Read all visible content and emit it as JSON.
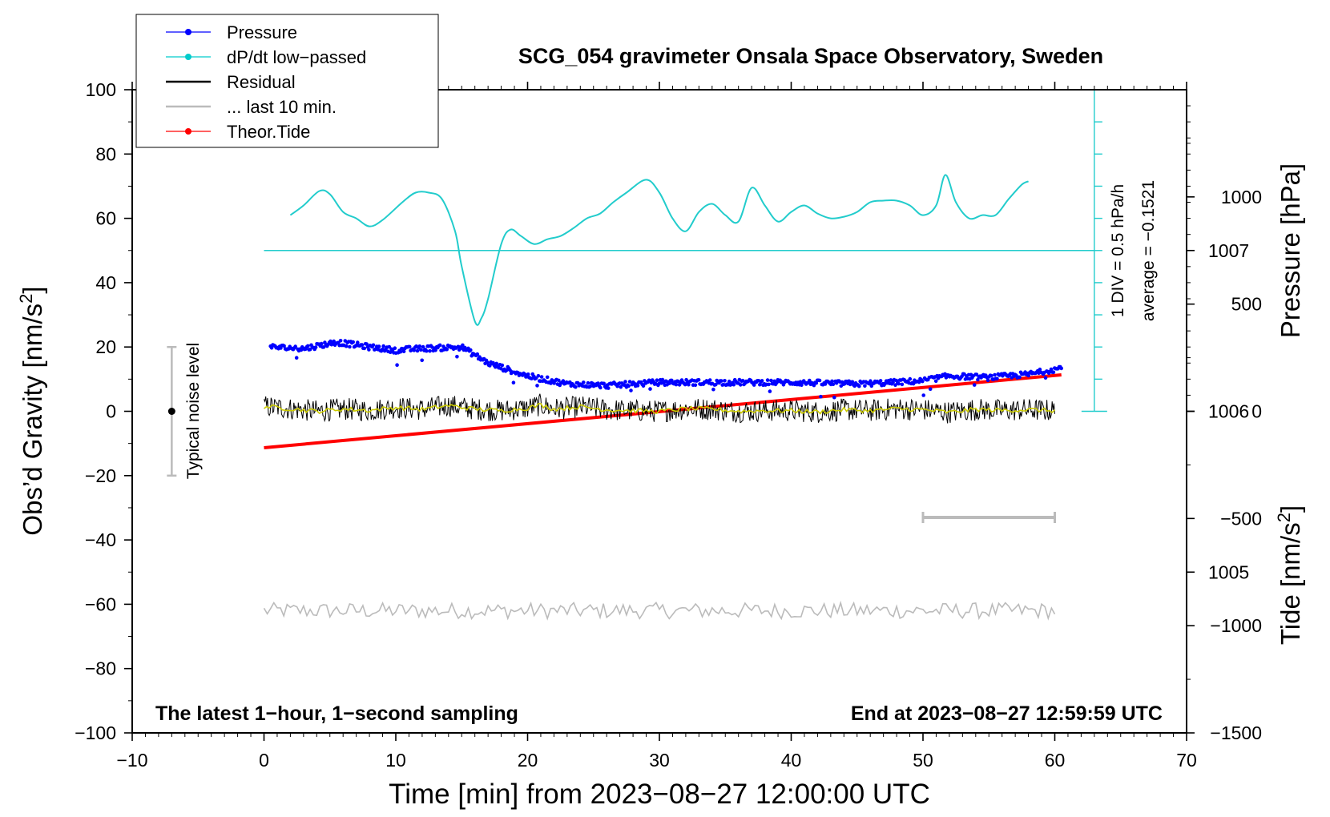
{
  "chart_data": {
    "type": "line",
    "title": "SCG_054 gravimeter Onsala Space Observatory, Sweden",
    "xlabel": "Time [min] from 2023−08−27 12:00:00 UTC",
    "ylabel_left_main": "Obs’d Gravity [nm/s",
    "ylabel_left_sup": "2",
    "ylabel_left_close": "]",
    "ylabel_right_pressure": "Pressure [hPa]",
    "ylabel_right_tide_main": "Tide [nm/s",
    "ylabel_right_tide_sup": "2",
    "ylabel_right_tide_close": "]",
    "xlim": [
      -10,
      70
    ],
    "ylim": [
      -100,
      100
    ],
    "pressure_lim": [
      1004.0,
      1008.0
    ],
    "tide_lim": [
      -1500,
      1500
    ],
    "x_ticks": [
      {
        "v": -10,
        "label": "−10"
      },
      {
        "v": 0,
        "label": "0"
      },
      {
        "v": 10,
        "label": "10"
      },
      {
        "v": 20,
        "label": "20"
      },
      {
        "v": 30,
        "label": "30"
      },
      {
        "v": 40,
        "label": "40"
      },
      {
        "v": 50,
        "label": "50"
      },
      {
        "v": 60,
        "label": "60"
      },
      {
        "v": 70,
        "label": "70"
      }
    ],
    "y_ticks": [
      {
        "v": 100,
        "label": "100"
      },
      {
        "v": 80,
        "label": "80"
      },
      {
        "v": 60,
        "label": "60"
      },
      {
        "v": 40,
        "label": "40"
      },
      {
        "v": 20,
        "label": "20"
      },
      {
        "v": 0,
        "label": "0"
      },
      {
        "v": -20,
        "label": "−20"
      },
      {
        "v": -40,
        "label": "−40"
      },
      {
        "v": -60,
        "label": "−60"
      },
      {
        "v": -80,
        "label": "−80"
      },
      {
        "v": -100,
        "label": "−100"
      }
    ],
    "pressure_ticks": [
      {
        "v": 1007,
        "label": "1007"
      },
      {
        "v": 1006,
        "label": "1006"
      },
      {
        "v": 1005,
        "label": "1005"
      }
    ],
    "tide_ticks": [
      {
        "v": 1000,
        "label": "1000"
      },
      {
        "v": 500,
        "label": "500"
      },
      {
        "v": 0,
        "label": "0"
      },
      {
        "v": -500,
        "label": "−500"
      },
      {
        "v": -1000,
        "label": "−1000"
      },
      {
        "v": -1500,
        "label": "−1500"
      }
    ],
    "legend": [
      {
        "name": "Pressure",
        "color": "#0000ff",
        "marker": true
      },
      {
        "name": "dP/dt low−passed",
        "color": "#00cccc",
        "marker": true
      },
      {
        "name": "Residual",
        "color": "#000000",
        "marker": false
      },
      {
        "name": "... last 10 min.",
        "color": "#bbbbbb",
        "marker": false
      },
      {
        "name": "Theor.Tide",
        "color": "#ff0000",
        "marker": true
      }
    ],
    "colors": {
      "pressure": "#0000ff",
      "dpdt": "#22cccc",
      "residual": "#000000",
      "residual_smooth": "#cccc00",
      "last10": "#bbbbbb",
      "tide": "#ff0000",
      "noise": "#bbbbbb"
    },
    "pressure_series": {
      "name": "Pressure",
      "unit": "hPa",
      "x": [
        0.5,
        3,
        5.5,
        8,
        10,
        12,
        15,
        17,
        20,
        23,
        26,
        28,
        30,
        35,
        40,
        45,
        48,
        50,
        52,
        55,
        58,
        60.5
      ],
      "y": [
        1006.4,
        1006.39,
        1006.43,
        1006.4,
        1006.38,
        1006.39,
        1006.4,
        1006.3,
        1006.22,
        1006.17,
        1006.16,
        1006.17,
        1006.18,
        1006.18,
        1006.18,
        1006.17,
        1006.18,
        1006.19,
        1006.22,
        1006.21,
        1006.23,
        1006.27
      ]
    },
    "dpdt_series": {
      "name": "dP/dt low−passed",
      "x": [
        2,
        3,
        4.2,
        5,
        6,
        7,
        8,
        9,
        10.5,
        11.5,
        12.5,
        13.5,
        14.5,
        15,
        16,
        16.5,
        17,
        18,
        18.7,
        19.5,
        20.5,
        21.5,
        22.5,
        23.5,
        24.5,
        25.5,
        26.5,
        27.5,
        29,
        30,
        31,
        32,
        33,
        34,
        35,
        36,
        37,
        38,
        39,
        40,
        41,
        42,
        43,
        44,
        45,
        46,
        47,
        48,
        49,
        50,
        51,
        51.7,
        52.5,
        53.5,
        54.5,
        55.5,
        56.5,
        57.5,
        58
      ],
      "y": [
        1.1,
        1.4,
        1.85,
        1.75,
        1.2,
        1.0,
        0.75,
        0.95,
        1.5,
        1.8,
        1.8,
        1.6,
        0.6,
        -0.5,
        -2.2,
        -2.1,
        -1.5,
        0.2,
        0.65,
        0.45,
        0.2,
        0.35,
        0.45,
        0.7,
        1.0,
        1.15,
        1.5,
        1.8,
        2.2,
        1.8,
        1.0,
        0.6,
        1.2,
        1.45,
        1.1,
        0.9,
        1.95,
        1.4,
        0.9,
        1.2,
        1.4,
        1.15,
        1.0,
        1.05,
        1.2,
        1.5,
        1.55,
        1.55,
        1.4,
        1.1,
        1.4,
        2.35,
        1.5,
        1.0,
        1.1,
        1.1,
        1.6,
        2.05,
        2.15
      ]
    },
    "dpdt_axis": {
      "label_div": "1 DIV = 0.5 hPa/h",
      "label_avg": "average = −0.1521",
      "zero_line_y": 50,
      "divisions": 10
    },
    "residual_series": {
      "name": "Residual",
      "x": [
        0,
        2,
        4,
        6,
        8,
        10,
        12,
        14,
        16,
        18,
        20,
        21,
        22,
        24,
        26,
        28,
        30,
        32,
        34,
        36,
        38,
        40,
        42,
        44,
        46,
        48,
        50,
        52,
        54,
        56,
        58,
        60
      ],
      "y": [
        1.5,
        0.8,
        0,
        0.7,
        0.3,
        1.2,
        0.6,
        1.8,
        0.7,
        0.2,
        1.0,
        2.0,
        0.7,
        1.4,
        0.5,
        0.2,
        0.0,
        0.8,
        0.7,
        0.0,
        0.2,
        0.2,
        -0.2,
        0.5,
        0.2,
        0.8,
        0.5,
        -0.3,
        0.6,
        0.3,
        0.5,
        0.2
      ],
      "noise_amp": 3.5
    },
    "last10_series": {
      "name": "... last 10 min.",
      "mean": -62,
      "amp": 2.5
    },
    "tide_series": {
      "name": "Theor.Tide",
      "unit": "nm/s²",
      "x": [
        0,
        60.5
      ],
      "y": [
        -170,
        170
      ]
    },
    "noise_level": {
      "label": "Typical noise level",
      "x": -7,
      "range": [
        -20,
        20
      ]
    },
    "last10_bracket": {
      "x": [
        50,
        60
      ],
      "y": -33
    },
    "annotations": {
      "bottom_left": "The latest 1−hour, 1−second sampling",
      "bottom_right": "End at 2023−08−27 12:59:59 UTC"
    }
  }
}
